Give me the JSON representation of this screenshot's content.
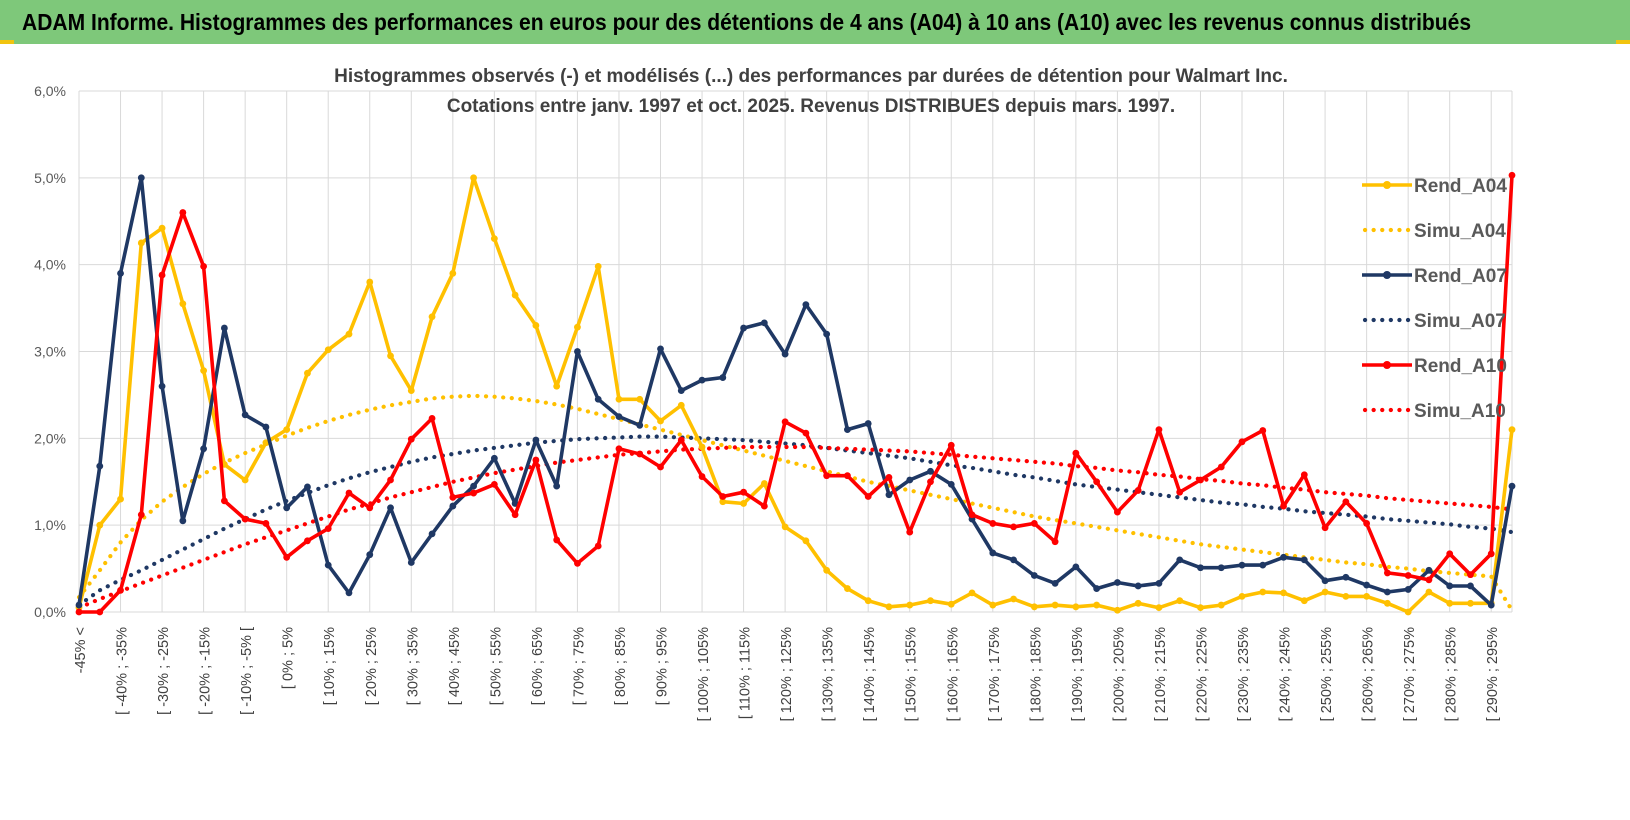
{
  "page_title": "ADAM Informe. Histogrammes des performances en euros pour des détentions de 4 ans (A04) à 10 ans (A10) avec les revenus connus distribués",
  "colors": {
    "banner": "#7ec87a",
    "a04": "#ffc000",
    "a07": "#1f3864",
    "a10": "#ff0000",
    "grid": "#d9d9d9",
    "axis_text": "#595959"
  },
  "chart_data": {
    "type": "line",
    "title": "Histogrammes observés (-) et modélisés (...) des performances par durées de détention pour Walmart Inc.",
    "subtitle": "Cotations entre janv. 1997 et oct. 2025.  Revenus DISTRIBUES depuis mars. 1997.",
    "ylim": [
      0,
      6
    ],
    "y_unit": "%",
    "y_ticks": [
      "0,0%",
      "1,0%",
      "2,0%",
      "3,0%",
      "4,0%",
      "5,0%",
      "6,0%"
    ],
    "x_tick_labels": [
      "-45% <",
      "[ -40% ; -35%",
      "[ -30% ; -25%",
      "[ -20% ; -15%",
      "[ -10% ; -5% [",
      "[ 0% ; 5%",
      "[ 10% ; 15%",
      "[ 20% ; 25%",
      "[ 30% ; 35%",
      "[ 40% ; 45%",
      "[ 50% ; 55%",
      "[ 60% ; 65%",
      "[ 70% ; 75%",
      "[ 80% ; 85%",
      "[ 90% ; 95%",
      "[ 100% ; 105%",
      "[ 110% ; 115%",
      "[ 120% ; 125%",
      "[ 130% ; 135%",
      "[ 140% ; 145%",
      "[ 150% ; 155%",
      "[ 160% ; 165%",
      "[ 170% ; 175%",
      "[ 180% ; 185%",
      "[ 190% ; 195%",
      "[ 200% ; 205%",
      "[ 210% ; 215%",
      "[ 220% ; 225%",
      "[ 230% ; 235%",
      "[ 240% ; 245%",
      "[ 250% ; 255%",
      "[ 260% ; 265%",
      "[ 270% ; 275%",
      "[ 280% ; 285%",
      "[ 290% ; 295%"
    ],
    "legend_position": "right",
    "series": [
      {
        "name": "Rend_A04",
        "style": "solid",
        "color": "#ffc000",
        "values": [
          0.05,
          1.0,
          1.3,
          4.25,
          4.42,
          3.55,
          2.78,
          1.7,
          1.52,
          1.95,
          2.1,
          2.75,
          3.02,
          3.2,
          3.8,
          2.95,
          2.55,
          3.4,
          3.9,
          5.0,
          4.3,
          3.65,
          3.3,
          2.6,
          3.28,
          3.98,
          2.45,
          2.45,
          2.2,
          2.38,
          1.9,
          1.27,
          1.25,
          1.48,
          0.98,
          0.82,
          0.48,
          0.27,
          0.13,
          0.06,
          0.08,
          0.13,
          0.09,
          0.22,
          0.08,
          0.15,
          0.06,
          0.08,
          0.06,
          0.08,
          0.02,
          0.1,
          0.05,
          0.13,
          0.05,
          0.08,
          0.18,
          0.23,
          0.22,
          0.13,
          0.23,
          0.18,
          0.18,
          0.1,
          0.0,
          0.23,
          0.1,
          0.1,
          0.1,
          2.1
        ]
      },
      {
        "name": "Simu_A04",
        "style": "dotted",
        "color": "#ffc000",
        "values": [
          0.17,
          0.48,
          0.8,
          1.06,
          1.27,
          1.44,
          1.59,
          1.72,
          1.83,
          1.93,
          2.03,
          2.12,
          2.2,
          2.27,
          2.33,
          2.38,
          2.42,
          2.46,
          2.48,
          2.49,
          2.48,
          2.46,
          2.43,
          2.39,
          2.34,
          2.28,
          2.22,
          2.16,
          2.1,
          2.04,
          1.98,
          1.92,
          1.86,
          1.8,
          1.74,
          1.68,
          1.62,
          1.56,
          1.5,
          1.45,
          1.4,
          1.35,
          1.3,
          1.25,
          1.2,
          1.15,
          1.1,
          1.06,
          1.02,
          0.98,
          0.94,
          0.9,
          0.86,
          0.82,
          0.78,
          0.75,
          0.72,
          0.69,
          0.66,
          0.63,
          0.6,
          0.57,
          0.55,
          0.52,
          0.5,
          0.47,
          0.45,
          0.43,
          0.41,
          0.02
        ]
      },
      {
        "name": "Rend_A07",
        "style": "solid",
        "color": "#1f3864",
        "values": [
          0.08,
          1.68,
          3.9,
          5.0,
          2.6,
          1.05,
          1.88,
          3.27,
          2.27,
          2.13,
          1.2,
          1.44,
          0.54,
          0.22,
          0.66,
          1.2,
          0.57,
          0.9,
          1.22,
          1.45,
          1.77,
          1.25,
          1.98,
          1.45,
          3.0,
          2.45,
          2.25,
          2.15,
          3.03,
          2.55,
          2.67,
          2.7,
          3.27,
          3.33,
          2.97,
          3.54,
          3.2,
          2.1,
          2.17,
          1.35,
          1.52,
          1.62,
          1.47,
          1.07,
          0.68,
          0.6,
          0.42,
          0.33,
          0.52,
          0.27,
          0.34,
          0.3,
          0.33,
          0.6,
          0.51,
          0.51,
          0.54,
          0.54,
          0.63,
          0.6,
          0.36,
          0.4,
          0.31,
          0.23,
          0.26,
          0.48,
          0.3,
          0.3,
          0.08,
          1.45
        ]
      },
      {
        "name": "Simu_A07",
        "style": "dotted",
        "color": "#1f3864",
        "values": [
          0.08,
          0.25,
          0.37,
          0.48,
          0.6,
          0.72,
          0.84,
          0.96,
          1.07,
          1.18,
          1.28,
          1.37,
          1.46,
          1.54,
          1.61,
          1.67,
          1.73,
          1.78,
          1.82,
          1.86,
          1.89,
          1.92,
          1.95,
          1.97,
          1.99,
          2.0,
          2.01,
          2.02,
          2.02,
          2.01,
          2.0,
          1.99,
          1.98,
          1.96,
          1.94,
          1.92,
          1.89,
          1.86,
          1.83,
          1.8,
          1.77,
          1.73,
          1.69,
          1.66,
          1.62,
          1.58,
          1.55,
          1.51,
          1.47,
          1.44,
          1.41,
          1.38,
          1.35,
          1.32,
          1.29,
          1.26,
          1.24,
          1.21,
          1.19,
          1.16,
          1.14,
          1.12,
          1.1,
          1.07,
          1.05,
          1.03,
          1.01,
          0.98,
          0.96,
          0.92
        ]
      },
      {
        "name": "Rend_A10",
        "style": "solid",
        "color": "#ff0000",
        "values": [
          0.0,
          0.0,
          0.25,
          1.12,
          3.88,
          4.6,
          3.98,
          1.28,
          1.07,
          1.02,
          0.63,
          0.82,
          0.96,
          1.37,
          1.2,
          1.52,
          1.99,
          2.23,
          1.32,
          1.37,
          1.47,
          1.12,
          1.75,
          0.83,
          0.56,
          0.76,
          1.88,
          1.82,
          1.67,
          1.98,
          1.56,
          1.33,
          1.38,
          1.22,
          2.19,
          2.06,
          1.57,
          1.57,
          1.33,
          1.55,
          0.92,
          1.5,
          1.92,
          1.12,
          1.02,
          0.98,
          1.02,
          0.81,
          1.83,
          1.5,
          1.15,
          1.4,
          2.1,
          1.38,
          1.52,
          1.67,
          1.96,
          2.09,
          1.22,
          1.58,
          0.97,
          1.27,
          1.02,
          0.45,
          0.42,
          0.37,
          0.67,
          0.43,
          0.67,
          5.03
        ]
      },
      {
        "name": "Simu_A10",
        "style": "dotted",
        "color": "#ff0000",
        "values": [
          0.05,
          0.15,
          0.24,
          0.33,
          0.42,
          0.51,
          0.6,
          0.69,
          0.78,
          0.86,
          0.94,
          1.02,
          1.1,
          1.18,
          1.25,
          1.32,
          1.38,
          1.44,
          1.5,
          1.55,
          1.6,
          1.64,
          1.68,
          1.72,
          1.75,
          1.78,
          1.81,
          1.83,
          1.85,
          1.87,
          1.88,
          1.89,
          1.9,
          1.9,
          1.9,
          1.9,
          1.89,
          1.88,
          1.87,
          1.86,
          1.85,
          1.83,
          1.81,
          1.79,
          1.77,
          1.75,
          1.73,
          1.71,
          1.68,
          1.66,
          1.63,
          1.61,
          1.58,
          1.56,
          1.53,
          1.51,
          1.48,
          1.46,
          1.43,
          1.41,
          1.38,
          1.36,
          1.34,
          1.31,
          1.29,
          1.27,
          1.25,
          1.23,
          1.21,
          1.18
        ]
      }
    ]
  }
}
